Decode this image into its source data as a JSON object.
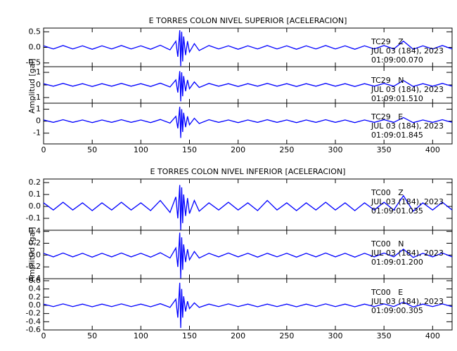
{
  "chart_data": [
    {
      "type": "line",
      "title": "E TORRES COLON NIVEL SUPERIOR [ACELERACION]",
      "y_label": "Amplitud [gal]",
      "xlim": [
        0,
        420
      ],
      "xticks": [
        0,
        50,
        100,
        150,
        200,
        250,
        300,
        350,
        400
      ],
      "x": [
        0,
        10,
        20,
        30,
        40,
        50,
        60,
        70,
        80,
        90,
        100,
        110,
        120,
        130,
        136,
        138,
        140,
        141,
        142,
        143,
        144,
        146,
        148,
        150,
        155,
        160,
        170,
        180,
        190,
        200,
        210,
        220,
        230,
        240,
        250,
        260,
        270,
        280,
        290,
        300,
        310,
        320,
        330,
        340,
        350,
        360,
        370,
        380,
        390,
        400,
        410,
        420
      ],
      "series": [
        {
          "name": "TC29   Z",
          "date": "JUL 03 (184), 2023",
          "time": "01:09:00.070",
          "color": "#0000ff",
          "ylim": [
            -0.62,
            0.62
          ],
          "yticks": [
            {
              "value": 0.5,
              "label": "0.5"
            },
            {
              "value": 0,
              "label": "0.0"
            },
            {
              "value": -0.5,
              "label": "-0.5"
            }
          ],
          "values": [
            0.05,
            -0.05,
            0.06,
            -0.05,
            0.05,
            -0.06,
            0.05,
            -0.05,
            0.06,
            -0.05,
            0.05,
            -0.06,
            0.07,
            -0.08,
            0.2,
            -0.3,
            0.55,
            -0.6,
            0.5,
            -0.45,
            0.35,
            -0.25,
            0.2,
            -0.15,
            0.12,
            -0.1,
            0.06,
            -0.05,
            0.05,
            -0.06,
            0.05,
            -0.05,
            0.06,
            -0.05,
            0.05,
            -0.06,
            0.05,
            -0.05,
            0.06,
            -0.05,
            0.05,
            -0.06,
            0.05,
            -0.05,
            0.06,
            -0.05,
            0.2,
            -0.06,
            0.05,
            -0.05,
            0.06,
            -0.05
          ]
        },
        {
          "name": "TC29   N",
          "date": "JUL 03 (184), 2023",
          "time": "01:09:01.510",
          "color": "#0000ff",
          "ylim": [
            -1.45,
            1.45
          ],
          "yticks": [
            1,
            0,
            -1
          ],
          "values": [
            0.1,
            -0.1,
            0.12,
            -0.1,
            0.1,
            -0.12,
            0.1,
            -0.1,
            0.12,
            -0.1,
            0.1,
            -0.12,
            0.14,
            -0.16,
            0.4,
            -0.6,
            1.1,
            -1.3,
            1.0,
            -0.9,
            0.7,
            -0.5,
            0.4,
            -0.3,
            0.24,
            -0.2,
            0.12,
            -0.1,
            0.1,
            -0.12,
            0.1,
            -0.1,
            0.12,
            -0.1,
            0.1,
            -0.12,
            0.1,
            -0.1,
            0.12,
            -0.1,
            0.1,
            -0.12,
            0.1,
            -0.1,
            0.12,
            -0.1,
            0.35,
            -0.12,
            0.1,
            -0.1,
            0.12,
            -0.1
          ]
        },
        {
          "name": "TC29   E",
          "date": "JUL 03 (184), 2023",
          "time": "01:09:01.845",
          "color": "#0000ff",
          "ylim": [
            -1.9,
            1.5
          ],
          "yticks": [
            1,
            0,
            -1
          ],
          "values": [
            0.1,
            -0.1,
            0.12,
            -0.1,
            0.1,
            -0.12,
            0.1,
            -0.1,
            0.12,
            -0.1,
            0.1,
            -0.12,
            0.14,
            -0.16,
            0.4,
            -0.6,
            1.2,
            -1.4,
            1.0,
            -0.9,
            0.7,
            -0.5,
            0.4,
            -0.3,
            0.24,
            -0.2,
            0.12,
            -0.1,
            0.1,
            -0.12,
            0.1,
            -0.1,
            0.12,
            -0.1,
            0.1,
            -0.12,
            0.1,
            -0.1,
            0.12,
            -0.1,
            0.1,
            -0.12,
            0.1,
            -0.1,
            0.12,
            -0.1,
            0.3,
            -0.12,
            0.1,
            -0.1,
            0.12,
            -0.1
          ]
        }
      ]
    },
    {
      "type": "line",
      "title": "E TORRES COLON NIVEL INFERIOR [ACELERACION]",
      "y_label": "Amplitud [gal]",
      "xlim": [
        0,
        420
      ],
      "xticks": [
        0,
        50,
        100,
        150,
        200,
        250,
        300,
        350,
        400
      ],
      "x": [
        0,
        10,
        20,
        30,
        40,
        50,
        60,
        70,
        80,
        90,
        100,
        110,
        120,
        130,
        136,
        138,
        140,
        141,
        142,
        143,
        144,
        146,
        148,
        150,
        155,
        160,
        170,
        180,
        190,
        200,
        210,
        220,
        230,
        240,
        250,
        260,
        270,
        280,
        290,
        300,
        310,
        320,
        330,
        340,
        350,
        360,
        370,
        380,
        390,
        400,
        410,
        420
      ],
      "series": [
        {
          "name": "TC00   Z",
          "date": "JUL 03 (184), 2023",
          "time": "01:09:01.035",
          "color": "#0000ff",
          "ylim": [
            -0.2,
            0.23
          ],
          "yticks": [
            {
              "value": 0.2,
              "label": "0.2"
            },
            {
              "value": 0.1,
              "label": "0.1"
            },
            {
              "value": 0,
              "label": "0.0"
            },
            {
              "value": -0.1,
              "label": "-0.1"
            }
          ],
          "values": [
            0.03,
            -0.03,
            0.035,
            -0.03,
            0.03,
            -0.035,
            0.03,
            -0.03,
            0.035,
            -0.03,
            0.03,
            -0.035,
            0.05,
            -0.05,
            0.08,
            -0.1,
            0.18,
            -0.2,
            0.16,
            -0.14,
            0.1,
            -0.08,
            0.07,
            -0.06,
            0.05,
            -0.04,
            0.03,
            -0.03,
            0.035,
            -0.03,
            0.03,
            -0.035,
            0.05,
            -0.03,
            0.03,
            -0.035,
            0.03,
            -0.03,
            0.035,
            -0.03,
            0.03,
            -0.035,
            0.03,
            -0.03,
            0.035,
            -0.03,
            0.09,
            -0.04,
            0.03,
            -0.03,
            0.035,
            -0.03
          ]
        },
        {
          "name": "TC00   N",
          "date": "JUL 03 (184), 2023",
          "time": "01:09:01.200",
          "color": "#0000ff",
          "ylim": [
            -0.4,
            0.42
          ],
          "yticks": [
            {
              "value": 0.4,
              "label": "0.4"
            },
            {
              "value": 0.2,
              "label": "0.2"
            },
            {
              "value": 0,
              "label": "0.0"
            },
            {
              "value": -0.2,
              "label": "-0.2"
            },
            {
              "value": -0.4,
              "label": "-0.4"
            }
          ],
          "values": [
            0.03,
            -0.03,
            0.035,
            -0.03,
            0.03,
            -0.035,
            0.03,
            -0.03,
            0.035,
            -0.03,
            0.03,
            -0.035,
            0.04,
            -0.05,
            0.12,
            -0.2,
            0.38,
            -0.4,
            0.3,
            -0.25,
            0.18,
            -0.12,
            0.1,
            -0.08,
            0.06,
            -0.05,
            0.03,
            -0.03,
            0.035,
            -0.03,
            0.03,
            -0.035,
            0.03,
            -0.03,
            0.03,
            -0.035,
            0.03,
            -0.03,
            0.035,
            -0.03,
            0.03,
            -0.035,
            0.03,
            -0.03,
            0.035,
            -0.03,
            0.1,
            -0.04,
            0.03,
            -0.03,
            0.035,
            -0.03
          ]
        },
        {
          "name": "TC00   E",
          "date": "JUL 03 (184), 2023",
          "time": "01:09:00.305",
          "color": "#0000ff",
          "ylim": [
            -0.6,
            0.65
          ],
          "yticks": [
            {
              "value": 0.6,
              "label": "0.6"
            },
            {
              "value": 0.4,
              "label": "0.4"
            },
            {
              "value": 0.2,
              "label": "0.2"
            },
            {
              "value": 0,
              "label": "0.0"
            },
            {
              "value": -0.2,
              "label": "-0.2"
            },
            {
              "value": -0.4,
              "label": "-0.4"
            },
            {
              "value": -0.6,
              "label": "-0.6"
            }
          ],
          "values": [
            0.03,
            -0.03,
            0.035,
            -0.03,
            0.03,
            -0.035,
            0.03,
            -0.03,
            0.035,
            -0.03,
            0.03,
            -0.035,
            0.04,
            -0.05,
            0.15,
            -0.3,
            0.55,
            -0.55,
            0.4,
            -0.3,
            0.22,
            -0.15,
            0.1,
            -0.08,
            0.06,
            -0.05,
            0.03,
            -0.03,
            0.035,
            -0.03,
            0.03,
            -0.035,
            0.03,
            -0.03,
            0.03,
            -0.035,
            0.03,
            -0.03,
            0.035,
            -0.03,
            0.03,
            -0.035,
            0.03,
            -0.03,
            0.035,
            -0.03,
            0.08,
            -0.04,
            0.03,
            -0.03,
            0.035,
            -0.03
          ]
        }
      ]
    }
  ]
}
